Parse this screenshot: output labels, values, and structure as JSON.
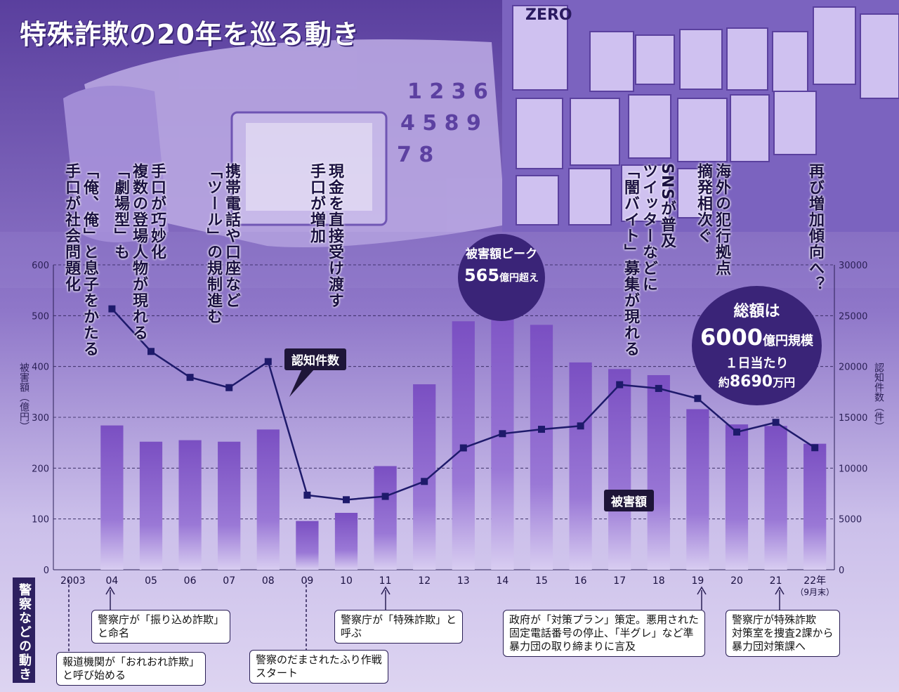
{
  "title": "特殊詐欺の20年を巡る動き",
  "top_notes": [
    {
      "text": "「俺、俺」と息子をかたる\n手口が社会問題化"
    },
    {
      "text": "手口が巧妙化\n複数の登場人物が現れる\n「劇場型」も"
    },
    {
      "text": "携帯電話や口座など\n「ツール」の規制進む"
    },
    {
      "text": "現金を直接受け渡す\n手口が増加"
    },
    {
      "text": "SNSが普及\nツイッターなどに\n「闇バイト」募集が現れる"
    },
    {
      "text": "海外の犯行拠点\n摘発相次ぐ"
    },
    {
      "text": "再び増加傾向へ？"
    }
  ],
  "peak_badge": {
    "line1": "被害額ピーク",
    "line2_num": "565",
    "line2_unit": "億円超え"
  },
  "total_badge": {
    "line1": "総額は",
    "line2_num": "6000",
    "line2_unit": "億円規模",
    "line3": "１日当たり",
    "line4_pre": "約",
    "line4_num": "8690",
    "line4_unit": "万円"
  },
  "tag_cases": "認知件数",
  "tag_damage": "被害額",
  "left_axis_label": "被害額（億円）",
  "right_axis_label": "認知件数（件）",
  "sidebar_label": "警察などの動き",
  "police_events": [
    {
      "year": "04",
      "text": "警察庁が「振り込め詐欺」\nと命名"
    },
    {
      "year": "2003",
      "text": "報道機関が「おれおれ詐欺」\nと呼び始める"
    },
    {
      "year": "09",
      "text": "警察のだまされたふり作戦\nスタート"
    },
    {
      "year": "11",
      "text": "警察庁が「特殊詐欺」と\n呼ぶ"
    },
    {
      "year": "19",
      "text": "政府が「対策プラン」策定。悪用された\n固定電話番号の停止、「半グレ」など準\n暴力団の取り締まりに言及"
    },
    {
      "year": "21",
      "text": "警察庁が特殊詐欺\n対策室を捜査2課から\n暴力団対策課へ"
    }
  ],
  "chart_data": {
    "type": "bar",
    "categories": [
      "2003",
      "04",
      "05",
      "06",
      "07",
      "08",
      "09",
      "10",
      "11",
      "12",
      "13",
      "14",
      "15",
      "16",
      "17",
      "18",
      "19",
      "20",
      "21",
      "22年"
    ],
    "last_category_note": "（9月末）",
    "series": [
      {
        "name": "被害額",
        "axis": "left",
        "unit": "億円",
        "type": "bar",
        "values": [
          null,
          284,
          252,
          255,
          252,
          276,
          96,
          112,
          204,
          365,
          489,
          566,
          482,
          408,
          395,
          383,
          316,
          286,
          283,
          248
        ]
      },
      {
        "name": "認知件数",
        "axis": "right",
        "unit": "件",
        "type": "line",
        "values": [
          null,
          25670,
          21480,
          18930,
          17920,
          20480,
          7340,
          6890,
          7220,
          8690,
          11990,
          13390,
          13820,
          14150,
          18210,
          17840,
          16850,
          13550,
          14500,
          12010
        ]
      }
    ],
    "left_axis": {
      "label": "被害額（億円）",
      "ylim": [
        0,
        600
      ],
      "ticks": [
        "0",
        "100",
        "200",
        "300",
        "400",
        "500",
        "600"
      ]
    },
    "right_axis": {
      "label": "認知件数（件）",
      "ylim": [
        0,
        30000
      ],
      "ticks": [
        "0",
        "5000",
        "10000",
        "15000",
        "20000",
        "25000",
        "30000"
      ]
    },
    "grid": true
  }
}
